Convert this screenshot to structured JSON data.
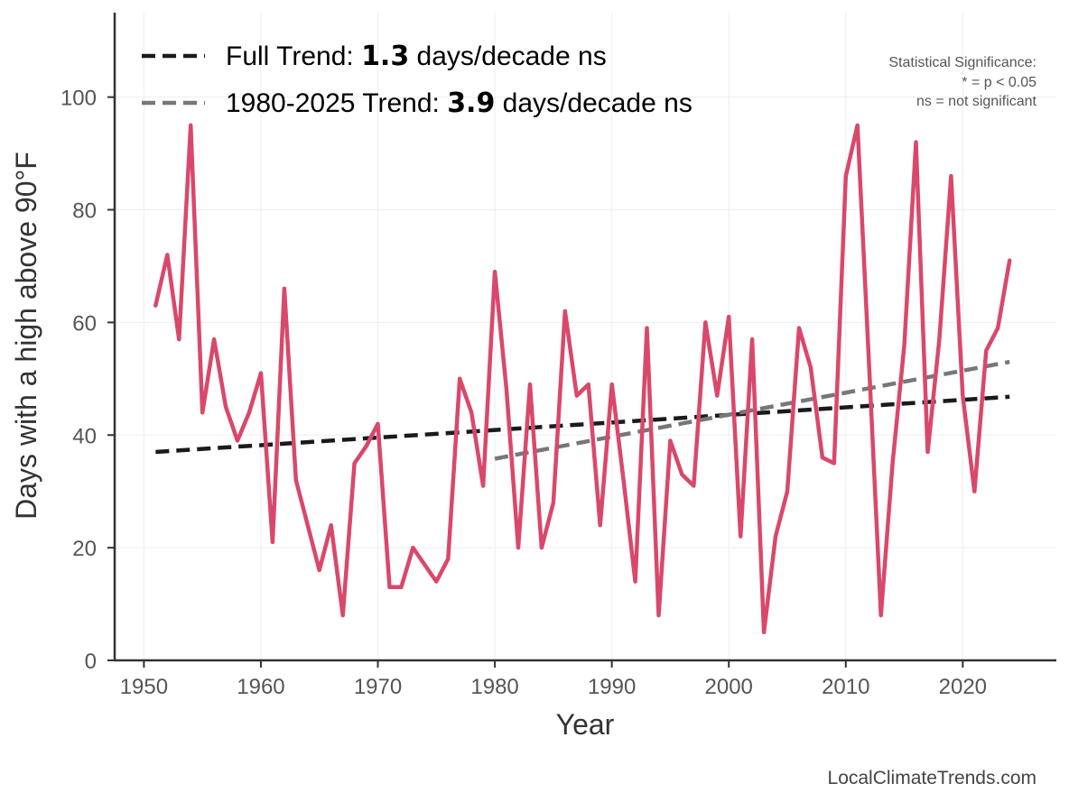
{
  "chart_data": {
    "type": "line",
    "title": "",
    "xlabel": "Year",
    "ylabel": "Days with a high above 90°F",
    "xlim": [
      1947.5,
      2028
    ],
    "ylim": [
      0,
      115
    ],
    "xticks": [
      1950,
      1960,
      1970,
      1980,
      1990,
      2000,
      2010,
      2020
    ],
    "yticks": [
      0,
      20,
      40,
      60,
      80,
      100
    ],
    "grid": true,
    "series": [
      {
        "name": "Days with a high above 90°F",
        "color": "#d9486a",
        "x": [
          1951,
          1952,
          1953,
          1954,
          1955,
          1956,
          1957,
          1958,
          1959,
          1960,
          1961,
          1962,
          1963,
          1964,
          1965,
          1966,
          1967,
          1968,
          1969,
          1970,
          1971,
          1972,
          1973,
          1974,
          1975,
          1976,
          1977,
          1978,
          1979,
          1980,
          1981,
          1982,
          1983,
          1984,
          1985,
          1986,
          1987,
          1988,
          1989,
          1990,
          1991,
          1992,
          1993,
          1994,
          1995,
          1996,
          1997,
          1998,
          1999,
          2000,
          2001,
          2002,
          2003,
          2004,
          2005,
          2006,
          2007,
          2008,
          2009,
          2010,
          2011,
          2012,
          2013,
          2014,
          2015,
          2016,
          2017,
          2018,
          2019,
          2020,
          2021,
          2022,
          2023,
          2024
        ],
        "values": [
          63,
          72,
          57,
          95,
          44,
          57,
          45,
          39,
          44,
          51,
          21,
          66,
          32,
          24,
          16,
          24,
          8,
          35,
          38,
          42,
          13,
          13,
          20,
          17,
          14,
          18,
          50,
          44,
          31,
          69,
          48,
          20,
          49,
          20,
          28,
          62,
          47,
          49,
          24,
          49,
          32,
          14,
          59,
          8,
          39,
          33,
          31,
          60,
          47,
          61,
          22,
          57,
          5,
          22,
          30,
          59,
          52,
          36,
          35,
          86,
          95,
          52,
          8,
          35,
          56,
          92,
          37,
          57,
          86,
          47,
          30,
          55,
          59,
          71
        ]
      }
    ],
    "trends": [
      {
        "name": "Full Trend",
        "label_prefix": "Full Trend: ",
        "rate": "1.3",
        "label_suffix": " days/decade ns",
        "color": "#1a1a1a",
        "x": [
          1951,
          2024
        ],
        "values": [
          37,
          46.8
        ]
      },
      {
        "name": "1980-2025 Trend",
        "label_prefix": "1980-2025 Trend: ",
        "rate": "3.9",
        "label_suffix": " days/decade ns",
        "color": "#777777",
        "x": [
          1980,
          2024
        ],
        "values": [
          35.8,
          53
        ]
      }
    ],
    "significance_note": [
      "Statistical Significance:",
      "* = p < 0.05",
      "ns = not significant"
    ],
    "source": "LocalClimateTrends.com"
  }
}
